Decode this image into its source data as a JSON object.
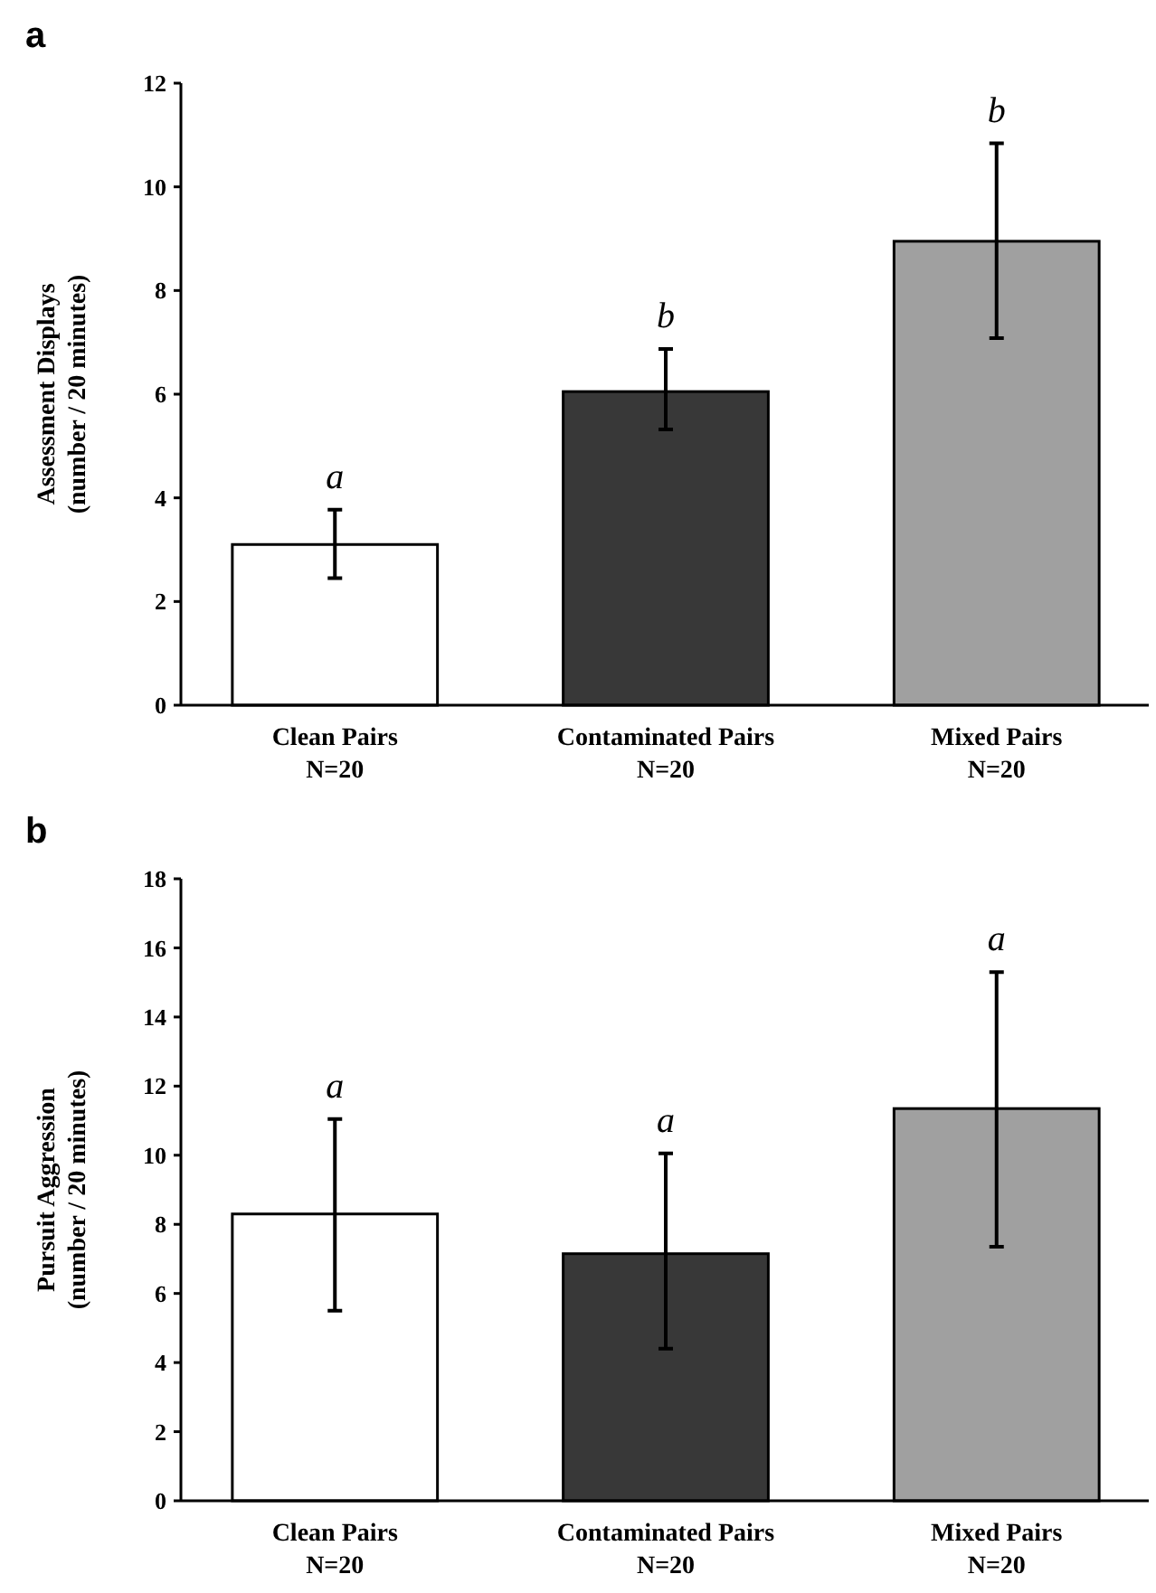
{
  "chart_data": [
    {
      "type": "bar",
      "title": "a",
      "ylabel": "Assessment Displays\n(number / 20 minutes)",
      "categories": [
        "Clean Pairs\nN=20",
        "Contaminated Pairs\nN=20",
        "Mixed Pairs\nN=20"
      ],
      "values": [
        3.1,
        6.05,
        8.95
      ],
      "errors": [
        [
          2.45,
          3.77
        ],
        [
          5.32,
          6.87
        ],
        [
          7.08,
          10.84
        ]
      ],
      "colors": [
        "#ffffff",
        "#383838",
        "#a0a0a0"
      ],
      "ylim": [
        0,
        12
      ],
      "yticks": [
        0,
        2,
        4,
        6,
        8,
        10,
        12
      ],
      "annotations": [
        {
          "text": "a",
          "x": "Clean Pairs\nN=20",
          "y": 3.77
        },
        {
          "text": "b",
          "x": "Contaminated Pairs\nN=20",
          "y": 6.87
        },
        {
          "text": "b",
          "x": "Mixed Pairs\nN=20",
          "y": 10.84
        }
      ]
    },
    {
      "type": "bar",
      "title": "b",
      "ylabel": "Pursuit Aggression\n(number / 20 minutes)",
      "categories": [
        "Clean Pairs\nN=20",
        "Contaminated Pairs\nN=20",
        "Mixed Pairs\nN=20"
      ],
      "values": [
        8.3,
        7.15,
        11.35
      ],
      "errors": [
        [
          5.5,
          11.05
        ],
        [
          4.4,
          10.05
        ],
        [
          7.35,
          15.3
        ]
      ],
      "colors": [
        "#ffffff",
        "#383838",
        "#a0a0a0"
      ],
      "ylim": [
        0,
        18
      ],
      "yticks": [
        0,
        2,
        4,
        6,
        8,
        10,
        12,
        14,
        16,
        18
      ],
      "annotations": [
        {
          "text": "a",
          "x": "Clean Pairs\nN=20",
          "y": 11.05
        },
        {
          "text": "a",
          "x": "Contaminated Pairs\nN=20",
          "y": 10.05
        },
        {
          "text": "a",
          "x": "Mixed Pairs\nN=20",
          "y": 15.3
        }
      ]
    }
  ]
}
